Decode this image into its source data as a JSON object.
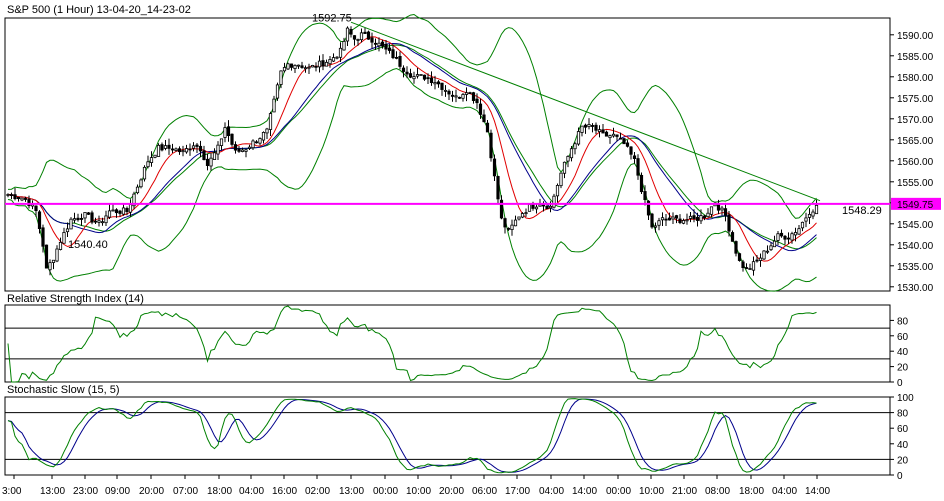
{
  "window": {
    "title": "S&P 500 (1 Hour) 13-04-20_14-23-02"
  },
  "colors": {
    "bollinger": "#008000",
    "ma_fast": "#e00000",
    "ma_slow": "#00008b",
    "horizontal_line": "#ff00ff",
    "candle": "#000000",
    "rsi": "#008000",
    "stoch_k": "#008000",
    "stoch_d": "#00008b",
    "grid": "#000000"
  },
  "chart_data": [
    {
      "type": "candlestick",
      "name": "price",
      "title": "S&P 500 (1 Hour) 13-04-20_14-23-02",
      "ylim": [
        1529,
        1594
      ],
      "yticks": [
        1530,
        1535,
        1540,
        1545,
        1550,
        1555,
        1560,
        1565,
        1570,
        1575,
        1580,
        1585,
        1590
      ],
      "ytick_labels": [
        "1530.00",
        "1535.00",
        "1540.00",
        "1545.00",
        "1550.00",
        "1555.00",
        "1560.00",
        "1565.00",
        "1570.00",
        "1575.00",
        "1580.00",
        "1585.00",
        "1590.00"
      ],
      "xtick_labels": [
        "3:00",
        "13:00",
        "23:00",
        "09:00",
        "20:00",
        "07:00",
        "18:00",
        "04:00",
        "16:00",
        "02:00",
        "13:00",
        "00:00",
        "10:00",
        "20:00",
        "06:00",
        "17:00",
        "04:00",
        "14:00",
        "00:00",
        "10:00",
        "21:00",
        "08:00",
        "18:00",
        "04:00",
        "14:00"
      ],
      "keypoints": [
        [
          0,
          1552
        ],
        [
          5,
          1551
        ],
        [
          8,
          1548
        ],
        [
          10,
          1540
        ],
        [
          11,
          1534
        ],
        [
          13,
          1537
        ],
        [
          15,
          1541
        ],
        [
          18,
          1546
        ],
        [
          22,
          1547
        ],
        [
          26,
          1545
        ],
        [
          29,
          1548
        ],
        [
          32,
          1548
        ],
        [
          34,
          1548
        ],
        [
          37,
          1554
        ],
        [
          40,
          1560
        ],
        [
          43,
          1563
        ],
        [
          47,
          1563
        ],
        [
          50,
          1562
        ],
        [
          53,
          1564
        ],
        [
          55,
          1563
        ],
        [
          57,
          1559
        ],
        [
          60,
          1563
        ],
        [
          62,
          1568
        ],
        [
          65,
          1562
        ],
        [
          68,
          1563
        ],
        [
          71,
          1565
        ],
        [
          74,
          1567
        ],
        [
          76,
          1574
        ],
        [
          78,
          1581
        ],
        [
          80,
          1583
        ],
        [
          83,
          1583
        ],
        [
          86,
          1582
        ],
        [
          89,
          1583
        ],
        [
          92,
          1584
        ],
        [
          95,
          1586
        ],
        [
          97,
          1591
        ],
        [
          99,
          1589
        ],
        [
          101,
          1590
        ],
        [
          104,
          1589
        ],
        [
          107,
          1587
        ],
        [
          110,
          1585
        ],
        [
          113,
          1582
        ],
        [
          116,
          1580
        ],
        [
          119,
          1580
        ],
        [
          122,
          1579
        ],
        [
          125,
          1577
        ],
        [
          128,
          1575
        ],
        [
          131,
          1577
        ],
        [
          134,
          1574
        ],
        [
          137,
          1567
        ],
        [
          139,
          1556
        ],
        [
          141,
          1546
        ],
        [
          143,
          1543
        ],
        [
          146,
          1547
        ],
        [
          149,
          1549
        ],
        [
          152,
          1550
        ],
        [
          155,
          1549
        ],
        [
          158,
          1557
        ],
        [
          161,
          1563
        ],
        [
          164,
          1568
        ],
        [
          167,
          1568
        ],
        [
          170,
          1566
        ],
        [
          173,
          1566
        ],
        [
          176,
          1564
        ],
        [
          179,
          1560
        ],
        [
          182,
          1550
        ],
        [
          184,
          1544
        ],
        [
          187,
          1546
        ],
        [
          190,
          1546
        ],
        [
          193,
          1546
        ],
        [
          196,
          1546
        ],
        [
          199,
          1547
        ],
        [
          202,
          1550
        ],
        [
          205,
          1547
        ],
        [
          207,
          1541
        ],
        [
          209,
          1536
        ],
        [
          211,
          1534
        ],
        [
          214,
          1536
        ],
        [
          217,
          1539
        ],
        [
          220,
          1542
        ],
        [
          223,
          1542
        ],
        [
          226,
          1544
        ],
        [
          229,
          1548
        ],
        [
          231,
          1549
        ]
      ],
      "annotations": [
        {
          "text": "1592.75",
          "value": 1592.75,
          "kind": "high"
        },
        {
          "text": "1540.40",
          "value": 1540.4,
          "kind": "low"
        },
        {
          "text": "1548.29",
          "value": 1548.29,
          "kind": "last"
        }
      ],
      "horizontal_line": {
        "value": 1549.75,
        "label": "1549.75"
      },
      "trend_line": {
        "from": [
          98,
          1593
        ],
        "to": [
          232,
          1550.5
        ]
      }
    },
    {
      "type": "line",
      "name": "rsi",
      "title": "Relative Strength Index (14)",
      "ylim": [
        0,
        100
      ],
      "yticks": [
        0,
        20,
        40,
        60,
        80
      ],
      "ytick_labels": [
        "0",
        "20",
        "40",
        "60",
        "80"
      ],
      "levels": [
        30,
        70
      ]
    },
    {
      "type": "line",
      "name": "stochastic",
      "title": "Stochastic Slow (15, 5)",
      "ylim": [
        0,
        100
      ],
      "yticks": [
        0,
        20,
        40,
        60,
        80,
        100
      ],
      "ytick_labels": [
        "0",
        "20",
        "40",
        "60",
        "80",
        "100"
      ],
      "levels": [
        20,
        80
      ]
    }
  ]
}
